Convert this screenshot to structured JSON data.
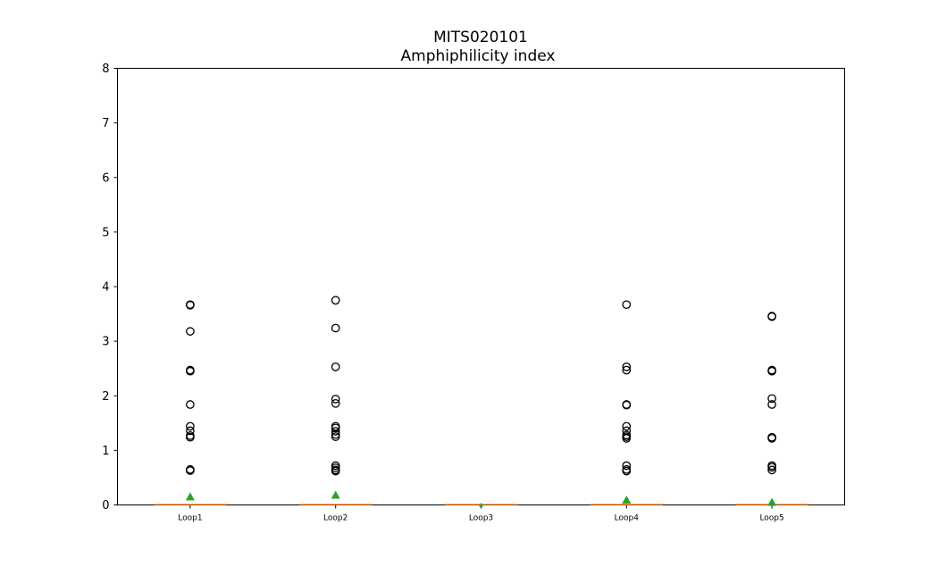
{
  "chart_data": {
    "type": "box",
    "title": "MITS020101",
    "subtitle": "Amphiphilicity index",
    "xlabel": "",
    "ylabel": "",
    "ylim": [
      0,
      8
    ],
    "yticks": [
      "0",
      "1",
      "2",
      "3",
      "4",
      "5",
      "6",
      "7",
      "8"
    ],
    "grid": false,
    "categories": [
      "Loop1",
      "Loop2",
      "Loop3",
      "Loop4",
      "Loop5"
    ],
    "boxes": [
      {
        "name": "Loop1",
        "q1": 0,
        "median": 0,
        "q3": 0,
        "whisker_low": 0,
        "whisker_high": 0,
        "mean": 0.15,
        "outliers": [
          3.67,
          3.66,
          3.18,
          2.47,
          2.45,
          1.84,
          1.44,
          1.36,
          1.27,
          1.24,
          0.65,
          0.63
        ]
      },
      {
        "name": "Loop2",
        "q1": 0,
        "median": 0,
        "q3": 0,
        "whisker_low": 0,
        "whisker_high": 0,
        "mean": 0.18,
        "outliers": [
          3.75,
          3.24,
          2.53,
          1.94,
          1.86,
          1.44,
          1.41,
          1.35,
          1.29,
          1.25,
          0.72,
          0.68,
          0.64,
          0.62
        ]
      },
      {
        "name": "Loop3",
        "q1": 0,
        "median": 0,
        "q3": 0,
        "whisker_low": 0,
        "whisker_high": 0,
        "mean": 0.0,
        "outliers": []
      },
      {
        "name": "Loop4",
        "q1": 0,
        "median": 0,
        "q3": 0,
        "whisker_low": 0,
        "whisker_high": 0,
        "mean": 0.09,
        "outliers": [
          3.67,
          2.53,
          2.47,
          1.84,
          1.83,
          1.44,
          1.36,
          1.28,
          1.25,
          1.22,
          0.72,
          0.65,
          0.62
        ]
      },
      {
        "name": "Loop5",
        "q1": 0,
        "median": 0,
        "q3": 0,
        "whisker_low": 0,
        "whisker_high": 0,
        "mean": 0.05,
        "outliers": [
          3.46,
          3.45,
          2.47,
          2.45,
          1.95,
          1.84,
          1.24,
          1.22,
          0.72,
          0.69,
          0.64
        ]
      }
    ],
    "colors": {
      "median": "#ff7f0e",
      "mean_marker": "#2ca02c",
      "outlier_edge": "#000000",
      "axes": "#000000"
    }
  }
}
